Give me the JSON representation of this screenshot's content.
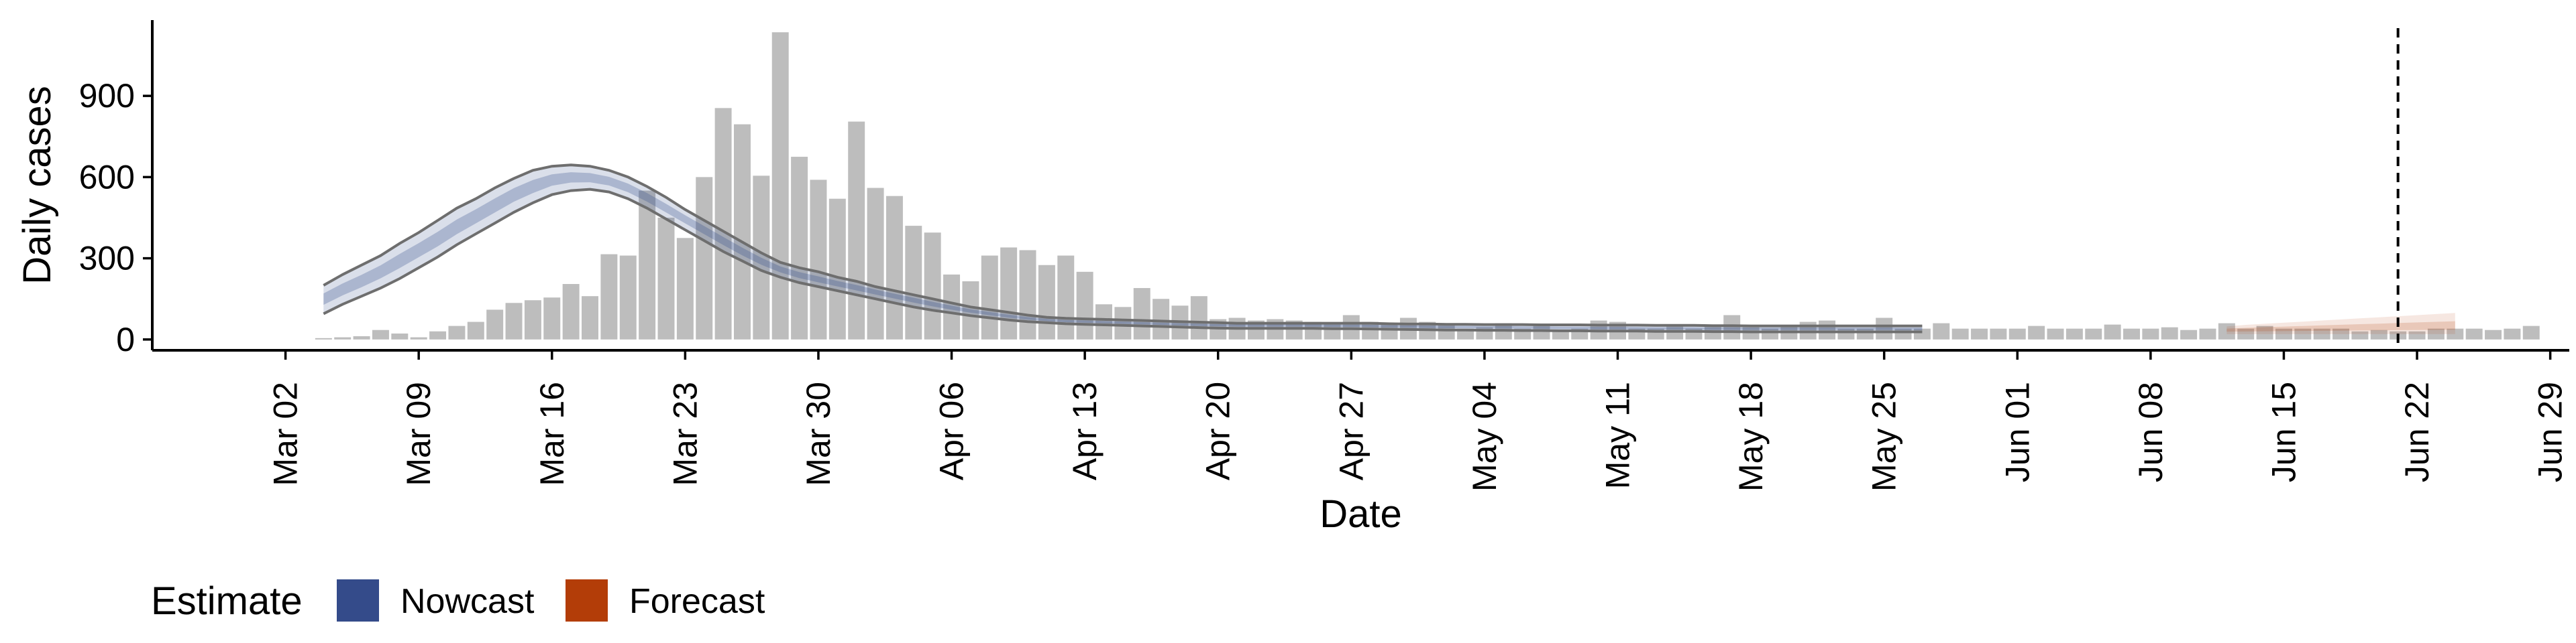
{
  "chart_data": {
    "type": "bar",
    "xlabel": "Date",
    "ylabel": "Daily cases",
    "ylim": [
      -40,
      1180
    ],
    "yticks": [
      0,
      300,
      600,
      900
    ],
    "xlim": [
      "2020-02-24",
      "2020-06-30"
    ],
    "xticks": [
      {
        "date": "2020-03-02",
        "label": "Mar 02"
      },
      {
        "date": "2020-03-09",
        "label": "Mar 09"
      },
      {
        "date": "2020-03-16",
        "label": "Mar 16"
      },
      {
        "date": "2020-03-23",
        "label": "Mar 23"
      },
      {
        "date": "2020-03-30",
        "label": "Mar 30"
      },
      {
        "date": "2020-04-06",
        "label": "Apr 06"
      },
      {
        "date": "2020-04-13",
        "label": "Apr 13"
      },
      {
        "date": "2020-04-20",
        "label": "Apr 20"
      },
      {
        "date": "2020-04-27",
        "label": "Apr 27"
      },
      {
        "date": "2020-05-04",
        "label": "May 04"
      },
      {
        "date": "2020-05-11",
        "label": "May 11"
      },
      {
        "date": "2020-05-18",
        "label": "May 18"
      },
      {
        "date": "2020-05-25",
        "label": "May 25"
      },
      {
        "date": "2020-06-01",
        "label": "Jun 01"
      },
      {
        "date": "2020-06-08",
        "label": "Jun 08"
      },
      {
        "date": "2020-06-15",
        "label": "Jun 15"
      },
      {
        "date": "2020-06-22",
        "label": "Jun 22"
      },
      {
        "date": "2020-06-29",
        "label": "Jun 29"
      }
    ],
    "reference_line_date": "2020-06-21",
    "legend": {
      "title": "Estimate",
      "position": "bottom-left",
      "entries": [
        {
          "label": "Nowcast",
          "color": "#344b8a"
        },
        {
          "label": "Forecast",
          "color": "#b33d08"
        }
      ]
    },
    "bars": {
      "name": "Reported cases",
      "color": "#bdbdbd",
      "start_date": "2020-03-04",
      "values": [
        5,
        8,
        12,
        35,
        22,
        8,
        30,
        50,
        65,
        110,
        135,
        145,
        155,
        205,
        160,
        315,
        310,
        550,
        450,
        375,
        600,
        855,
        795,
        605,
        1135,
        675,
        590,
        520,
        805,
        560,
        530,
        420,
        395,
        240,
        215,
        310,
        340,
        330,
        275,
        310,
        250,
        130,
        120,
        190,
        150,
        125,
        160,
        75,
        80,
        70,
        75,
        70,
        65,
        60,
        90,
        65,
        60,
        80,
        65,
        60,
        40,
        45,
        60,
        40,
        50,
        35,
        40,
        70,
        65,
        40,
        40,
        55,
        40,
        50,
        90,
        45,
        40,
        50,
        65,
        70,
        40,
        40,
        80,
        40,
        40,
        60,
        40,
        40,
        40,
        40,
        50,
        40,
        40,
        40,
        55,
        40,
        40,
        45,
        35,
        40,
        60,
        40,
        50,
        40,
        40,
        40,
        40,
        30,
        35,
        30,
        30,
        40,
        40,
        40,
        35,
        40,
        50
      ]
    },
    "nowcast": {
      "name": "Nowcast",
      "color": "#344b8a",
      "start_date": "2020-03-04",
      "upper": [
        200,
        240,
        275,
        310,
        355,
        395,
        440,
        485,
        520,
        560,
        595,
        625,
        640,
        645,
        640,
        625,
        600,
        565,
        525,
        480,
        440,
        400,
        360,
        320,
        285,
        265,
        250,
        230,
        215,
        195,
        180,
        165,
        150,
        135,
        120,
        110,
        100,
        90,
        82,
        78,
        76,
        74,
        72,
        70,
        68,
        66,
        64,
        62,
        60,
        60,
        60,
        60,
        60,
        60,
        60,
        60,
        58,
        57,
        57,
        56,
        56,
        55,
        55,
        55,
        54,
        54,
        54,
        53,
        53,
        53,
        52,
        52,
        52,
        51,
        51,
        50,
        50,
        50,
        50,
        50,
        50,
        50,
        50,
        50,
        50
      ],
      "median": [
        150,
        185,
        215,
        250,
        290,
        330,
        370,
        415,
        455,
        495,
        535,
        565,
        590,
        600,
        598,
        585,
        560,
        525,
        485,
        445,
        405,
        365,
        325,
        290,
        260,
        238,
        222,
        207,
        192,
        177,
        162,
        147,
        132,
        118,
        106,
        96,
        86,
        78,
        72,
        68,
        66,
        64,
        62,
        60,
        58,
        56,
        54,
        53,
        52,
        52,
        52,
        52,
        52,
        51,
        51,
        50,
        49,
        48,
        47,
        46,
        46,
        45,
        45,
        44,
        44,
        43,
        43,
        42,
        42,
        42,
        41,
        41,
        41,
        40,
        40,
        40,
        40,
        40,
        40,
        40,
        40,
        40,
        40,
        40,
        40
      ],
      "lower": [
        95,
        130,
        160,
        190,
        225,
        265,
        305,
        350,
        390,
        430,
        470,
        505,
        535,
        550,
        555,
        545,
        520,
        485,
        445,
        405,
        365,
        325,
        290,
        255,
        230,
        210,
        195,
        180,
        165,
        150,
        135,
        120,
        108,
        98,
        88,
        80,
        72,
        66,
        62,
        58,
        56,
        54,
        52,
        50,
        48,
        46,
        44,
        42,
        41,
        41,
        41,
        41,
        41,
        40,
        40,
        39,
        38,
        37,
        36,
        35,
        35,
        34,
        34,
        33,
        33,
        32,
        32,
        31,
        31,
        31,
        30,
        30,
        30,
        29,
        29,
        28,
        28,
        28,
        28,
        28,
        28,
        28,
        28,
        28,
        28
      ]
    },
    "forecast": {
      "name": "Forecast",
      "color": "#b33d08",
      "start_date": "2020-06-12",
      "upper": [
        48,
        54,
        58,
        62,
        66,
        70,
        74,
        78,
        82,
        86,
        90,
        94,
        98
      ],
      "median": [
        35,
        36,
        37,
        38,
        39,
        40,
        41,
        42,
        43,
        44,
        45,
        46,
        47
      ],
      "lower": [
        20,
        20,
        20,
        20,
        20,
        20,
        20,
        20,
        20,
        20,
        20,
        20,
        20
      ]
    }
  }
}
